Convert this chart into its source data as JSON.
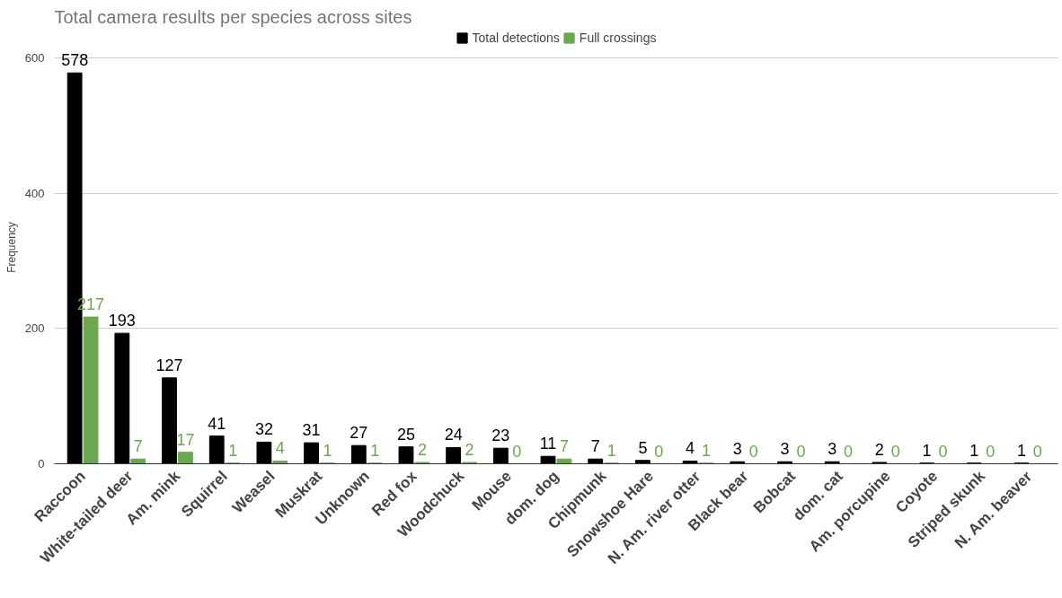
{
  "chart_data": {
    "type": "bar",
    "title": "Total camera results per species across sites",
    "ylabel": "Frequency",
    "categories": [
      "Raccoon",
      "White-tailed deer",
      "Am. mink",
      "Squirrel",
      "Weasel",
      "Muskrat",
      "Unknown",
      "Red fox",
      "Woodchuck",
      "Mouse",
      "dom. dog",
      "Chipmunk",
      "Snowshoe Hare",
      "N. Am. river otter",
      "Black bear",
      "Bobcat",
      "dom. cat",
      "Am. porcupine",
      "Coyote",
      "Striped skunk",
      "N. Am. beaver"
    ],
    "series": [
      {
        "name": "Total detections",
        "color": "#000000",
        "values": [
          578,
          193,
          127,
          41,
          32,
          31,
          27,
          25,
          24,
          23,
          11,
          7,
          5,
          4,
          3,
          3,
          3,
          2,
          1,
          1,
          1
        ]
      },
      {
        "name": "Full crossings",
        "color": "#6aa84f",
        "values": [
          217,
          7,
          17,
          1,
          4,
          1,
          1,
          2,
          2,
          0,
          7,
          1,
          0,
          1,
          0,
          0,
          0,
          0,
          0,
          0,
          0
        ]
      }
    ],
    "ylim": [
      0,
      640
    ],
    "yticks": [
      0,
      200,
      400,
      600
    ],
    "grid": "y",
    "legend": "top",
    "data_labels": true
  }
}
